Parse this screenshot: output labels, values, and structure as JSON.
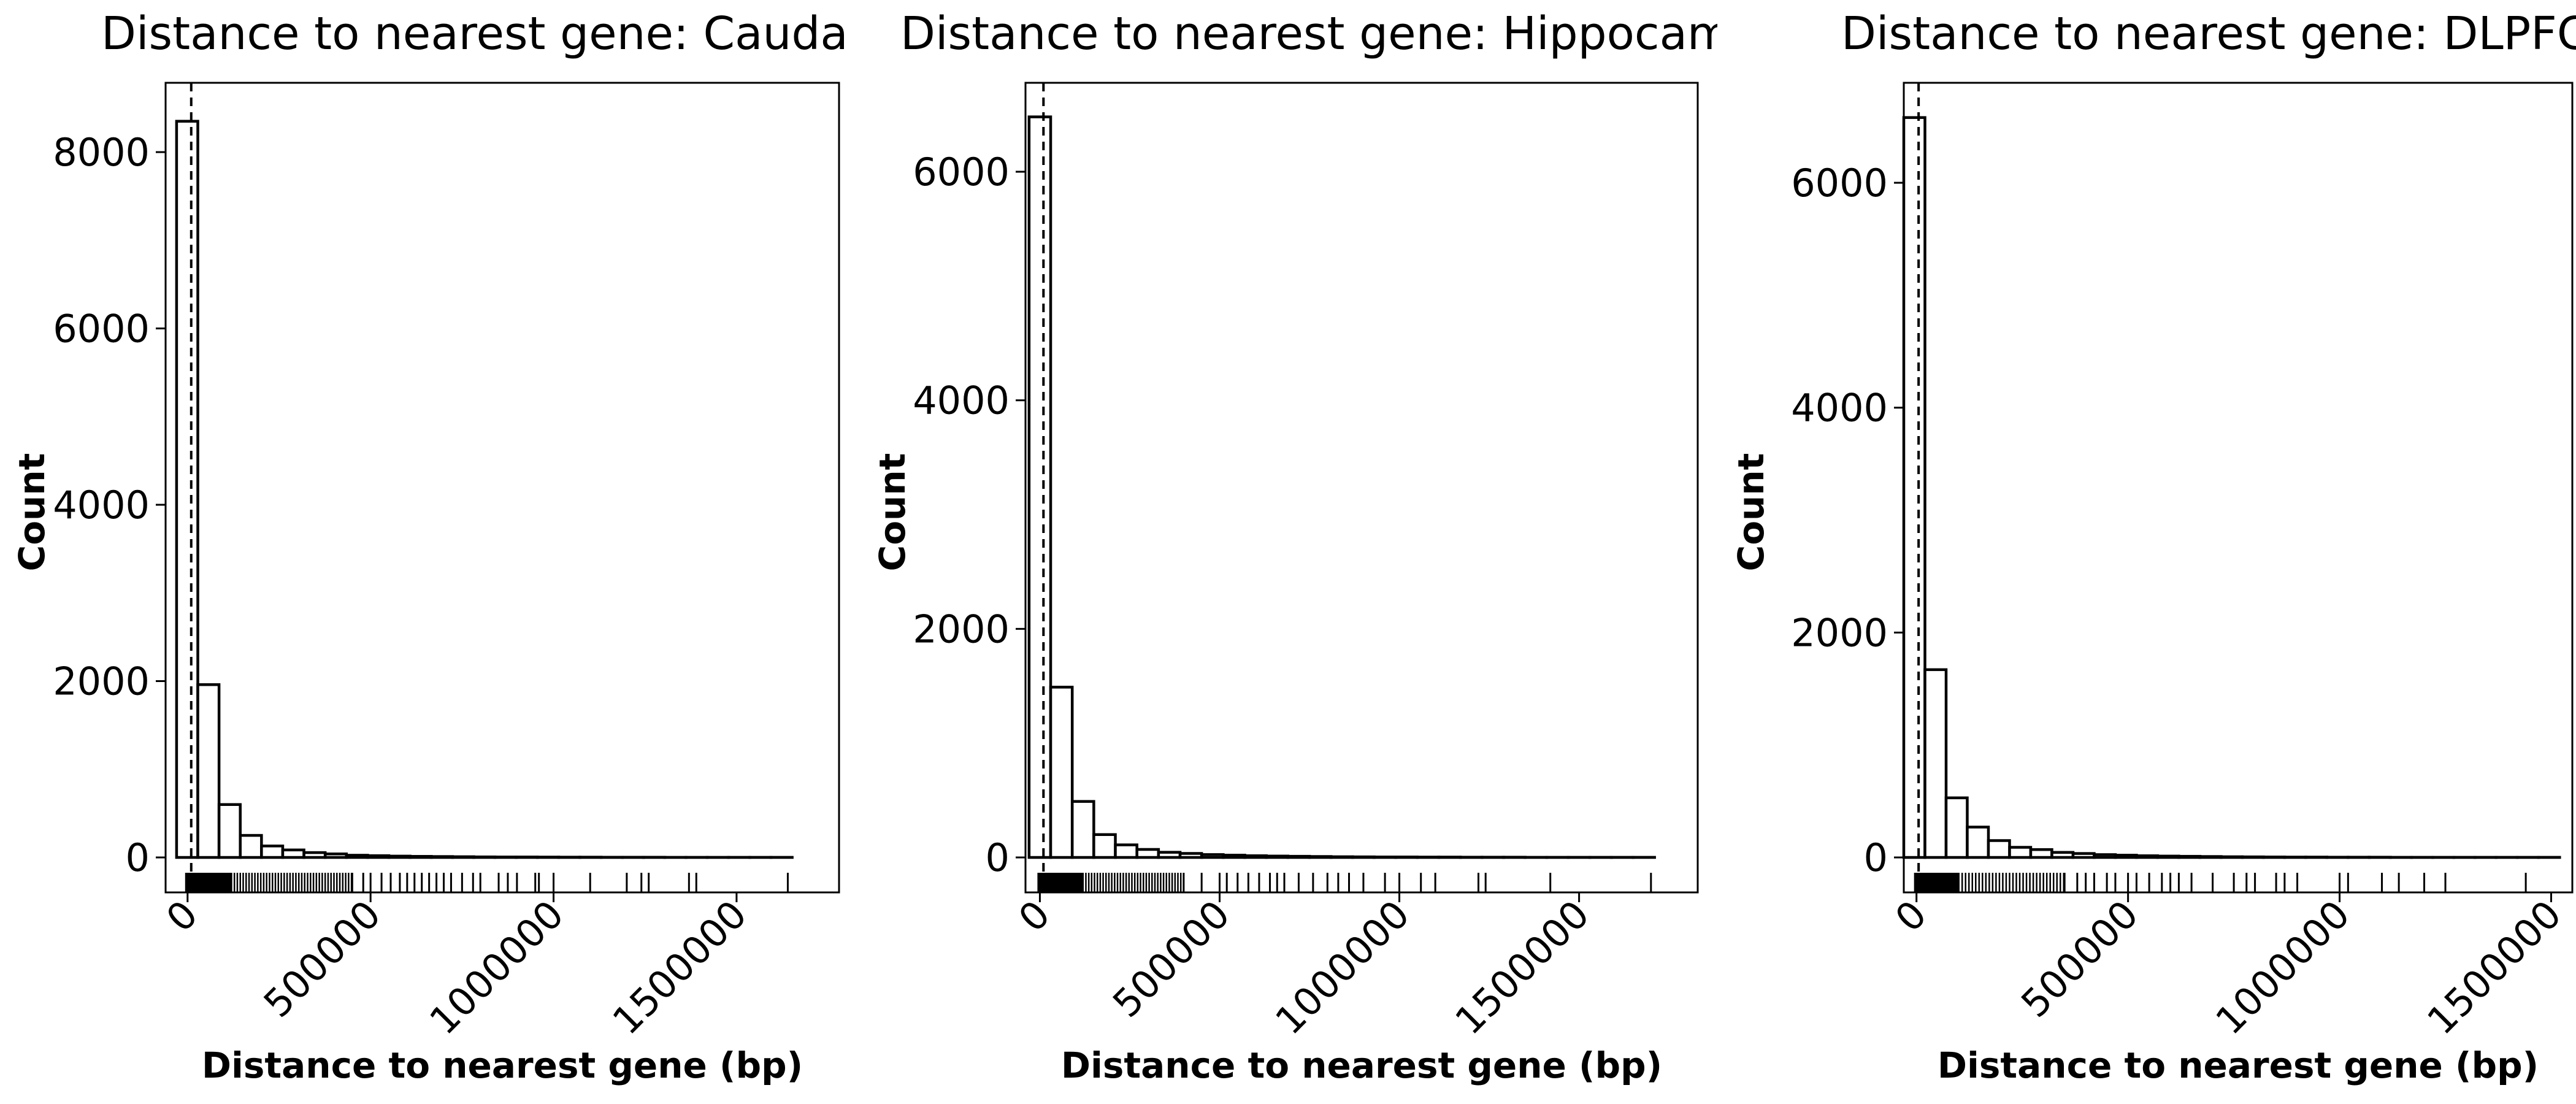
{
  "chart_data": [
    {
      "type": "bar",
      "title": "Distance to nearest gene: Cauda",
      "xlabel": "Distance to nearest gene (bp)",
      "ylabel": "Count",
      "xlim": [
        -60000,
        1780000
      ],
      "ylim": [
        -400,
        8800
      ],
      "xticks": [
        0,
        500000,
        1000000,
        1500000
      ],
      "xtick_labels": [
        "0",
        "500000",
        "1000000",
        "1500000"
      ],
      "yticks": [
        0,
        2000,
        4000,
        6000,
        8000
      ],
      "ytick_labels": [
        "0",
        "2000",
        "4000",
        "6000",
        "8000"
      ],
      "vline_x": 10000,
      "bin_start": -30000,
      "bin_width": 58000,
      "values": [
        8350,
        1960,
        600,
        250,
        130,
        85,
        55,
        40,
        25,
        20,
        15,
        12,
        10,
        8,
        6,
        5,
        5,
        4,
        3,
        3,
        2,
        2,
        2,
        1,
        1,
        1,
        1,
        1,
        1
      ],
      "rug": [
        120000,
        450000,
        480000,
        500000,
        530000,
        555000,
        580000,
        600000,
        620000,
        640000,
        660000,
        680000,
        700000,
        720000,
        750000,
        780000,
        800000,
        850000,
        875000,
        900000,
        950000,
        960000,
        1000000,
        1100000,
        1200000,
        1240000,
        1260000,
        1370000,
        1390000,
        1640000
      ],
      "grid": false
    },
    {
      "type": "bar",
      "title": "Distance to nearest gene: Hippocampus",
      "xlabel": "Distance to nearest gene (bp)",
      "ylabel": "Count",
      "xlim": [
        -40000,
        1830000
      ],
      "ylim": [
        -300,
        6800
      ],
      "xticks": [
        0,
        500000,
        1000000,
        1500000
      ],
      "xtick_labels": [
        "0",
        "500000",
        "1000000",
        "1500000"
      ],
      "yticks": [
        0,
        2000,
        4000,
        6000
      ],
      "ytick_labels": [
        "0",
        "2000",
        "4000",
        "6000"
      ],
      "vline_x": 10000,
      "bin_start": -30000,
      "bin_width": 60000,
      "values": [
        6480,
        1490,
        490,
        200,
        110,
        70,
        45,
        35,
        25,
        20,
        15,
        12,
        10,
        8,
        6,
        5,
        4,
        4,
        3,
        3,
        2,
        2,
        2,
        1,
        1,
        1,
        1,
        1,
        1
      ],
      "rug": [
        120000,
        400000,
        450000,
        500000,
        520000,
        550000,
        580000,
        610000,
        640000,
        660000,
        680000,
        720000,
        760000,
        800000,
        830000,
        860000,
        900000,
        960000,
        1000000,
        1060000,
        1100000,
        1220000,
        1240000,
        1420000,
        1700000
      ],
      "grid": false
    },
    {
      "type": "bar",
      "title": "Distance to nearest gene: DLPFC",
      "xlabel": "Distance to nearest gene (bp)",
      "ylabel": "Count",
      "xlim": [
        -30000,
        1550000
      ],
      "ylim": [
        -300,
        6900
      ],
      "xticks": [
        0,
        500000,
        1000000,
        1500000
      ],
      "xtick_labels": [
        "0",
        "500000",
        "1000000",
        "1500000"
      ],
      "yticks": [
        0,
        2000,
        4000,
        6000
      ],
      "ytick_labels": [
        "0",
        "2000",
        "4000",
        "6000"
      ],
      "vline_x": 5000,
      "bin_start": -30000,
      "bin_width": 50000,
      "values": [
        6580,
        1670,
        530,
        270,
        150,
        90,
        70,
        45,
        35,
        25,
        20,
        15,
        12,
        10,
        8,
        6,
        5,
        4,
        3,
        3,
        2,
        2,
        2,
        1,
        1,
        1,
        1,
        1,
        1,
        1,
        1
      ],
      "rug": [
        100000,
        350000,
        380000,
        400000,
        420000,
        450000,
        470000,
        500000,
        520000,
        550000,
        580000,
        600000,
        620000,
        650000,
        700000,
        750000,
        780000,
        800000,
        850000,
        870000,
        900000,
        1000000,
        1020000,
        1100000,
        1140000,
        1200000,
        1250000,
        1440000
      ],
      "grid": false
    }
  ]
}
